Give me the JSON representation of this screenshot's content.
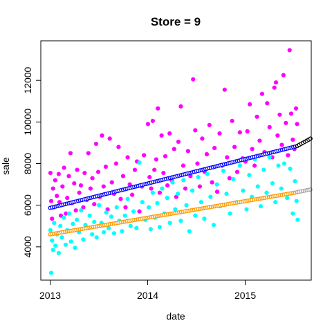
{
  "chart_data": {
    "type": "scatter",
    "title": "Store = 9",
    "xlabel": "date",
    "ylabel": "sale",
    "x_range": [
      "2012-11-27",
      "2015-09-05"
    ],
    "ylim": [
      2400,
      13900
    ],
    "x_ticks": [
      {
        "label": "2013",
        "value": "2013-01-01"
      },
      {
        "label": "2014",
        "value": "2014-01-01"
      },
      {
        "label": "2015",
        "value": "2015-01-01"
      }
    ],
    "y_ticks": [
      4000,
      6000,
      8000,
      10000,
      12000
    ],
    "grid": false,
    "legend": "none",
    "scatter_series": [
      {
        "color": "#ff00ff",
        "marker": "filled-circle",
        "points": [
          [
            "2013-01-02",
            7550
          ],
          [
            "2013-01-05",
            6200
          ],
          [
            "2013-01-08",
            5350
          ],
          [
            "2013-01-12",
            6800
          ],
          [
            "2013-01-15",
            5900
          ],
          [
            "2013-01-20",
            7200
          ],
          [
            "2013-01-26",
            6450
          ],
          [
            "2013-02-02",
            7500
          ],
          [
            "2013-02-05",
            6150
          ],
          [
            "2013-02-10",
            5500
          ],
          [
            "2013-02-16",
            6900
          ],
          [
            "2013-02-22",
            7800
          ],
          [
            "2013-03-01",
            5600
          ],
          [
            "2013-03-06",
            6350
          ],
          [
            "2013-03-12",
            7400
          ],
          [
            "2013-03-18",
            8500
          ],
          [
            "2013-03-24",
            6100
          ],
          [
            "2013-04-01",
            7050
          ],
          [
            "2013-04-07",
            5750
          ],
          [
            "2013-04-12",
            7700
          ],
          [
            "2013-04-20",
            6600
          ],
          [
            "2013-04-26",
            6950
          ],
          [
            "2013-05-05",
            5900
          ],
          [
            "2013-05-10",
            7550
          ],
          [
            "2013-05-18",
            6250
          ],
          [
            "2013-05-24",
            8500
          ],
          [
            "2013-06-01",
            6800
          ],
          [
            "2013-06-08",
            7300
          ],
          [
            "2013-06-15",
            6050
          ],
          [
            "2013-06-22",
            8950
          ],
          [
            "2013-06-30",
            7600
          ],
          [
            "2013-07-06",
            6400
          ],
          [
            "2013-07-14",
            9350
          ],
          [
            "2013-07-20",
            6900
          ],
          [
            "2013-07-28",
            7850
          ],
          [
            "2013-08-04",
            5800
          ],
          [
            "2013-08-12",
            9200
          ],
          [
            "2013-08-20",
            7100
          ],
          [
            "2013-08-28",
            6550
          ],
          [
            "2013-09-05",
            8000
          ],
          [
            "2013-09-14",
            8800
          ],
          [
            "2013-09-22",
            6300
          ],
          [
            "2013-10-01",
            7400
          ],
          [
            "2013-10-10",
            5900
          ],
          [
            "2013-10-18",
            8300
          ],
          [
            "2013-10-26",
            7000
          ],
          [
            "2013-11-04",
            6500
          ],
          [
            "2013-11-14",
            7700
          ],
          [
            "2013-11-22",
            8100
          ],
          [
            "2013-12-01",
            5700
          ],
          [
            "2013-12-10",
            6900
          ],
          [
            "2013-12-18",
            8400
          ],
          [
            "2014-01-02",
            9900
          ],
          [
            "2014-01-08",
            7350
          ],
          [
            "2014-01-14",
            6800
          ],
          [
            "2014-01-20",
            10050
          ],
          [
            "2014-01-26",
            7700
          ],
          [
            "2014-02-02",
            8200
          ],
          [
            "2014-02-08",
            10650
          ],
          [
            "2014-02-15",
            6600
          ],
          [
            "2014-02-22",
            9350
          ],
          [
            "2014-03-01",
            7550
          ],
          [
            "2014-03-08",
            8350
          ],
          [
            "2014-03-16",
            6950
          ],
          [
            "2014-03-24",
            9450
          ],
          [
            "2014-04-01",
            7200
          ],
          [
            "2014-04-10",
            8700
          ],
          [
            "2014-04-18",
            6400
          ],
          [
            "2014-04-26",
            9050
          ],
          [
            "2014-05-05",
            10750
          ],
          [
            "2014-05-14",
            7900
          ],
          [
            "2014-05-22",
            6800
          ],
          [
            "2014-06-01",
            8600
          ],
          [
            "2014-06-10",
            7400
          ],
          [
            "2014-06-20",
            12050
          ],
          [
            "2014-06-28",
            9600
          ],
          [
            "2014-07-06",
            8000
          ],
          [
            "2014-07-15",
            6900
          ],
          [
            "2014-07-24",
            9200
          ],
          [
            "2014-08-02",
            7600
          ],
          [
            "2014-08-10",
            8450
          ],
          [
            "2014-08-20",
            9850
          ],
          [
            "2014-08-30",
            7100
          ],
          [
            "2014-09-08",
            8750
          ],
          [
            "2014-09-18",
            6650
          ],
          [
            "2014-09-27",
            9450
          ],
          [
            "2014-10-06",
            7900
          ],
          [
            "2014-10-16",
            11550
          ],
          [
            "2014-10-25",
            8300
          ],
          [
            "2014-11-03",
            7300
          ],
          [
            "2014-11-13",
            10050
          ],
          [
            "2014-11-22",
            8800
          ],
          [
            "2014-12-02",
            7600
          ],
          [
            "2014-12-12",
            9500
          ],
          [
            "2014-12-22",
            8250
          ],
          [
            "2015-01-02",
            8100
          ],
          [
            "2015-01-09",
            9550
          ],
          [
            "2015-01-18",
            10850
          ],
          [
            "2015-01-27",
            8700
          ],
          [
            "2015-02-05",
            7900
          ],
          [
            "2015-02-14",
            10250
          ],
          [
            "2015-02-24",
            9100
          ],
          [
            "2015-03-05",
            11350
          ],
          [
            "2015-03-14",
            8550
          ],
          [
            "2015-03-24",
            10900
          ],
          [
            "2015-04-02",
            9750
          ],
          [
            "2015-04-12",
            8300
          ],
          [
            "2015-04-20",
            11650
          ],
          [
            "2015-04-26",
            11900
          ],
          [
            "2015-05-02",
            9350
          ],
          [
            "2015-05-10",
            10350
          ],
          [
            "2015-05-18",
            8900
          ],
          [
            "2015-05-24",
            12250
          ],
          [
            "2015-06-02",
            9950
          ],
          [
            "2015-06-10",
            8400
          ],
          [
            "2015-06-16",
            13450
          ],
          [
            "2015-06-22",
            10400
          ],
          [
            "2015-06-28",
            9150
          ],
          [
            "2015-07-04",
            8700
          ],
          [
            "2015-07-10",
            10650
          ],
          [
            "2015-07-14",
            9900
          ]
        ]
      },
      {
        "color": "#00ffff",
        "marker": "filled-circle",
        "points": [
          [
            "2013-01-02",
            4800
          ],
          [
            "2013-01-05",
            2750
          ],
          [
            "2013-01-08",
            4300
          ],
          [
            "2013-01-12",
            3850
          ],
          [
            "2013-01-16",
            5150
          ],
          [
            "2013-01-21",
            4050
          ],
          [
            "2013-01-27",
            4600
          ],
          [
            "2013-02-02",
            3700
          ],
          [
            "2013-02-08",
            5000
          ],
          [
            "2013-02-14",
            4450
          ],
          [
            "2013-02-21",
            5400
          ],
          [
            "2013-02-28",
            4100
          ],
          [
            "2013-03-06",
            4800
          ],
          [
            "2013-03-13",
            5600
          ],
          [
            "2013-03-20",
            4250
          ],
          [
            "2013-03-27",
            5100
          ],
          [
            "2013-04-04",
            3950
          ],
          [
            "2013-04-11",
            5300
          ],
          [
            "2013-04-19",
            4700
          ],
          [
            "2013-04-27",
            5750
          ],
          [
            "2013-05-05",
            4350
          ],
          [
            "2013-05-13",
            5050
          ],
          [
            "2013-05-21",
            4900
          ],
          [
            "2013-05-29",
            5500
          ],
          [
            "2013-06-07",
            4600
          ],
          [
            "2013-06-15",
            5200
          ],
          [
            "2013-06-24",
            4450
          ],
          [
            "2013-07-03",
            6000
          ],
          [
            "2013-07-12",
            5150
          ],
          [
            "2013-07-21",
            4700
          ],
          [
            "2013-07-30",
            5650
          ],
          [
            "2013-08-08",
            4900
          ],
          [
            "2013-08-18",
            5450
          ],
          [
            "2013-08-28",
            4650
          ],
          [
            "2013-09-07",
            5900
          ],
          [
            "2013-09-17",
            5250
          ],
          [
            "2013-09-27",
            4750
          ],
          [
            "2013-10-08",
            5500
          ],
          [
            "2013-10-18",
            6300
          ],
          [
            "2013-10-29",
            5000
          ],
          [
            "2013-11-09",
            5700
          ],
          [
            "2013-11-20",
            4900
          ],
          [
            "2013-12-01",
            8050
          ],
          [
            "2013-12-12",
            6150
          ],
          [
            "2013-12-23",
            5300
          ],
          [
            "2014-01-05",
            5900
          ],
          [
            "2014-01-12",
            4850
          ],
          [
            "2014-01-20",
            6600
          ],
          [
            "2014-01-28",
            5400
          ],
          [
            "2014-02-06",
            6100
          ],
          [
            "2014-02-15",
            4950
          ],
          [
            "2014-02-24",
            6800
          ],
          [
            "2014-03-05",
            5600
          ],
          [
            "2014-03-15",
            6350
          ],
          [
            "2014-03-25",
            5150
          ],
          [
            "2014-04-04",
            7100
          ],
          [
            "2014-04-14",
            5800
          ],
          [
            "2014-04-24",
            6550
          ],
          [
            "2014-05-05",
            5250
          ],
          [
            "2014-05-15",
            7200
          ],
          [
            "2014-05-26",
            6000
          ],
          [
            "2014-06-06",
            4750
          ],
          [
            "2014-06-17",
            6700
          ],
          [
            "2014-06-28",
            5500
          ],
          [
            "2014-07-09",
            7350
          ],
          [
            "2014-07-20",
            6150
          ],
          [
            "2014-08-01",
            5350
          ],
          [
            "2014-08-12",
            7500
          ],
          [
            "2014-08-24",
            6400
          ],
          [
            "2014-09-05",
            5050
          ],
          [
            "2014-09-17",
            7000
          ],
          [
            "2014-09-29",
            5950
          ],
          [
            "2014-10-11",
            7650
          ],
          [
            "2014-10-23",
            6550
          ],
          [
            "2014-11-05",
            5600
          ],
          [
            "2014-11-17",
            7250
          ],
          [
            "2014-11-30",
            6150
          ],
          [
            "2014-12-12",
            7900
          ],
          [
            "2014-12-24",
            6700
          ],
          [
            "2015-01-06",
            5800
          ],
          [
            "2015-01-16",
            7450
          ],
          [
            "2015-01-26",
            6400
          ],
          [
            "2015-02-06",
            8200
          ],
          [
            "2015-02-17",
            6900
          ],
          [
            "2015-02-28",
            5950
          ],
          [
            "2015-03-11",
            7700
          ],
          [
            "2015-03-22",
            6600
          ],
          [
            "2015-04-02",
            8300
          ],
          [
            "2015-04-13",
            7050
          ],
          [
            "2015-04-24",
            6150
          ],
          [
            "2015-05-05",
            7900
          ],
          [
            "2015-05-16",
            6800
          ],
          [
            "2015-05-27",
            8000
          ],
          [
            "2015-06-07",
            6350
          ],
          [
            "2015-06-18",
            7750
          ],
          [
            "2015-06-28",
            5600
          ],
          [
            "2015-07-06",
            7150
          ],
          [
            "2015-07-12",
            6200
          ],
          [
            "2015-07-16",
            5300
          ]
        ]
      }
    ],
    "fit_lines": [
      {
        "color": "#0000ff",
        "marker": "open-circle",
        "start": [
          "2013-01-01",
          5870
        ],
        "end": [
          "2015-07-14",
          8840
        ]
      },
      {
        "color": "#000000",
        "marker": "open-circle",
        "start": [
          "2015-07-15",
          8850
        ],
        "end": [
          "2015-09-05",
          9220
        ]
      },
      {
        "color": "#ff9900",
        "marker": "open-circle",
        "start": [
          "2013-01-01",
          4600
        ],
        "end": [
          "2015-07-14",
          6620
        ]
      },
      {
        "color": "#aaaaaa",
        "marker": "open-circle",
        "start": [
          "2015-07-15",
          6630
        ],
        "end": [
          "2015-09-05",
          6760
        ]
      }
    ]
  }
}
